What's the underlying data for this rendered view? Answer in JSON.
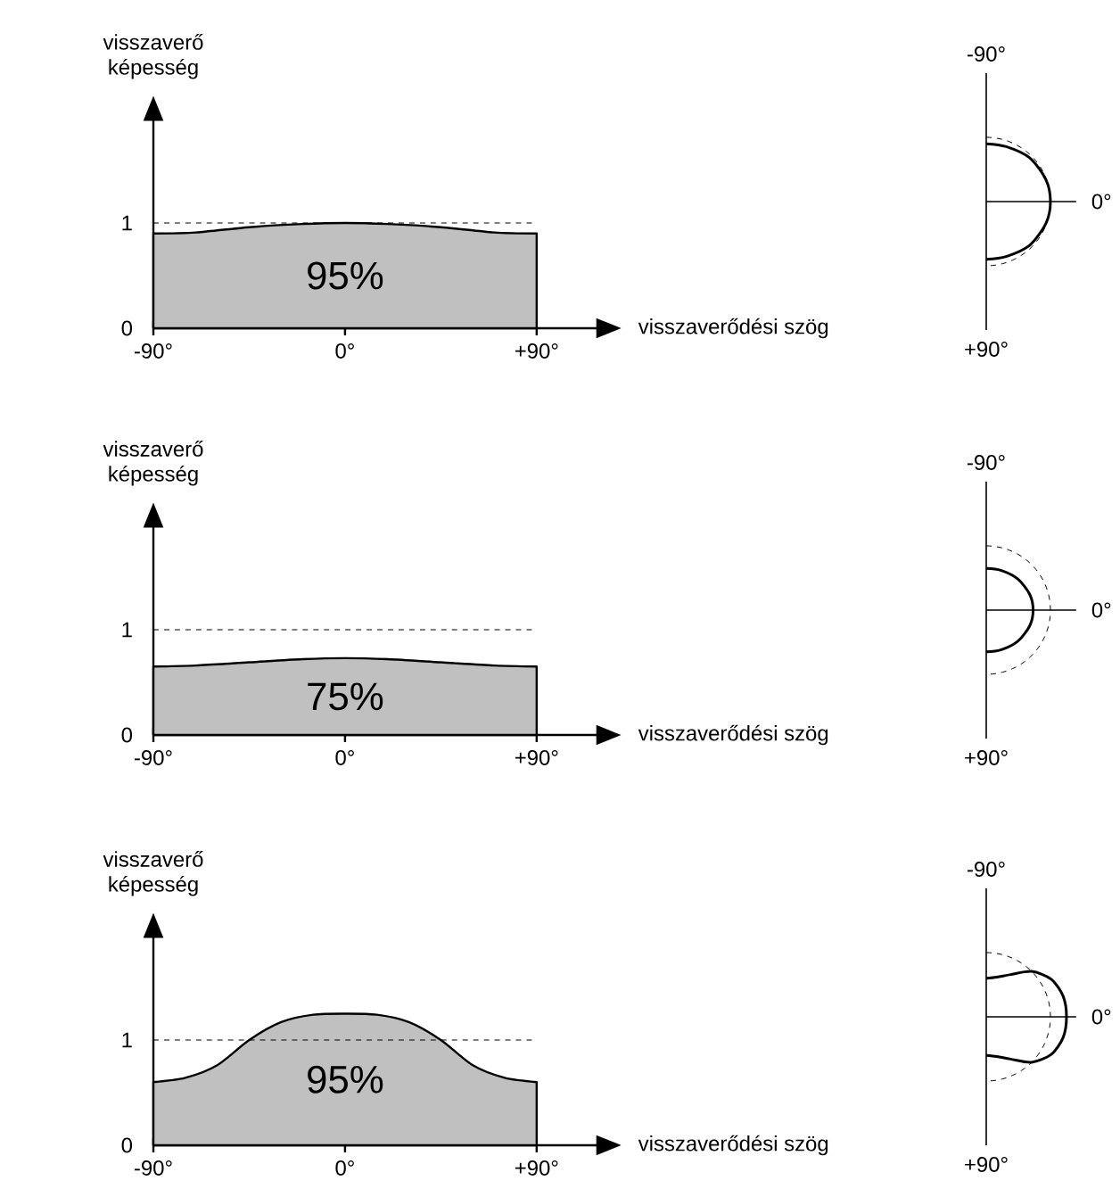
{
  "chart_data": [
    {
      "type": "area",
      "xlabel": "visszaverődési szög",
      "ylabel": "visszaverő képesség",
      "x": [
        -90,
        -70,
        -45,
        -20,
        0,
        20,
        45,
        70,
        90
      ],
      "values": [
        0.9,
        0.91,
        0.96,
        0.99,
        1.0,
        0.99,
        0.96,
        0.91,
        0.9
      ],
      "color": "#c0c0c0",
      "xlim": [
        -90,
        118
      ],
      "ylim": [
        0,
        1.97
      ],
      "xticks": [
        {
          "value": -90,
          "label": "-90°"
        },
        {
          "value": 0,
          "label": "0°"
        },
        {
          "value": 90,
          "label": "+90°"
        }
      ],
      "yticks": [
        0,
        1
      ],
      "ref_lines": [
        {
          "axis": "y",
          "value": 1,
          "line_style": "dashed"
        }
      ],
      "annotations": [
        "95%"
      ]
    },
    {
      "type": "other",
      "annotations": [
        "-90°",
        "0°",
        "+90°"
      ]
    },
    {
      "type": "area",
      "xlabel": "visszaverődési szög",
      "ylabel": "visszaverő képesség",
      "x": [
        -90,
        -70,
        -45,
        -20,
        0,
        20,
        45,
        70,
        90
      ],
      "values": [
        0.65,
        0.66,
        0.69,
        0.72,
        0.73,
        0.72,
        0.69,
        0.66,
        0.65
      ],
      "color": "#c0c0c0",
      "xlim": [
        -90,
        118
      ],
      "ylim": [
        0,
        1.97
      ],
      "xticks": [
        {
          "value": -90,
          "label": "-90°"
        },
        {
          "value": 0,
          "label": "0°"
        },
        {
          "value": 90,
          "label": "+90°"
        }
      ],
      "yticks": [
        0,
        1
      ],
      "ref_lines": [
        {
          "axis": "y",
          "value": 1,
          "line_style": "dashed"
        }
      ],
      "annotations": [
        "75%"
      ]
    },
    {
      "type": "other",
      "annotations": [
        "-90°",
        "0°",
        "+90°"
      ]
    },
    {
      "type": "area",
      "xlabel": "visszaverődési szög",
      "ylabel": "visszaverő képesség",
      "x": [
        -90,
        -75,
        -60,
        -45,
        -30,
        -15,
        0,
        15,
        30,
        45,
        60,
        75,
        90
      ],
      "values": [
        0.6,
        0.64,
        0.76,
        1.0,
        1.17,
        1.24,
        1.25,
        1.24,
        1.17,
        1.0,
        0.76,
        0.64,
        0.6
      ],
      "color": "#c0c0c0",
      "xlim": [
        -90,
        118
      ],
      "ylim": [
        0,
        1.97
      ],
      "xticks": [
        {
          "value": -90,
          "label": "-90°"
        },
        {
          "value": 0,
          "label": "0°"
        },
        {
          "value": 90,
          "label": "+90°"
        }
      ],
      "yticks": [
        0,
        1
      ],
      "ref_lines": [
        {
          "axis": "y",
          "value": 1,
          "line_style": "dashed"
        }
      ],
      "annotations": [
        "95%"
      ]
    },
    {
      "type": "other",
      "annotations": [
        "-90°",
        "0°",
        "+90°"
      ]
    }
  ]
}
